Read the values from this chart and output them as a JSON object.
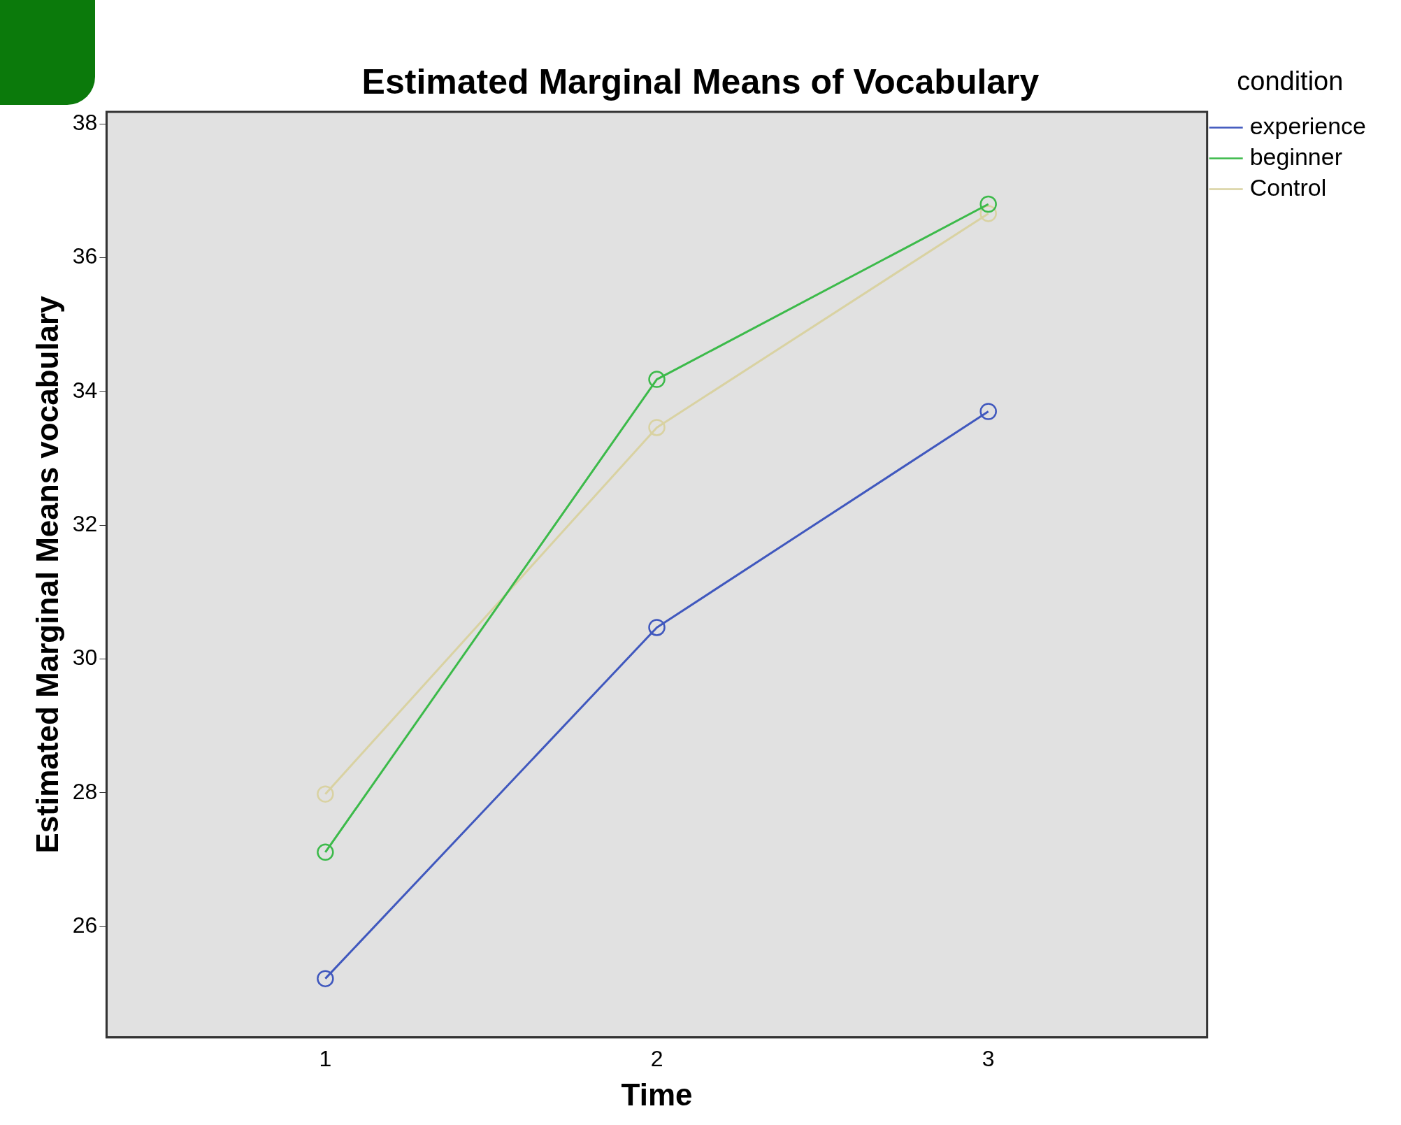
{
  "chart_data": {
    "type": "line",
    "title": "Estimated Marginal Means of Vocabulary",
    "xlabel": "Time",
    "ylabel": "Estimated Marginal Means vocabulary",
    "legend_title": "condition",
    "legend": "top right",
    "grid": false,
    "marker": "circle",
    "line_style": "solid",
    "x": [
      1,
      2,
      3
    ],
    "xlim": [
      0.34,
      3.66
    ],
    "xticks": [
      1,
      2,
      3
    ],
    "ylim": [
      24.34,
      38.18
    ],
    "yticks": [
      26,
      28,
      30,
      32,
      34,
      36,
      38
    ],
    "series": [
      {
        "name": "experience",
        "color": "#4058be",
        "values": [
          25.22,
          30.47,
          33.7
        ]
      },
      {
        "name": "beginner",
        "color": "#3cba4a",
        "values": [
          27.11,
          34.18,
          36.8
        ]
      },
      {
        "name": "Control",
        "color": "#d9d2a2",
        "values": [
          27.98,
          33.46,
          36.66
        ]
      }
    ]
  }
}
